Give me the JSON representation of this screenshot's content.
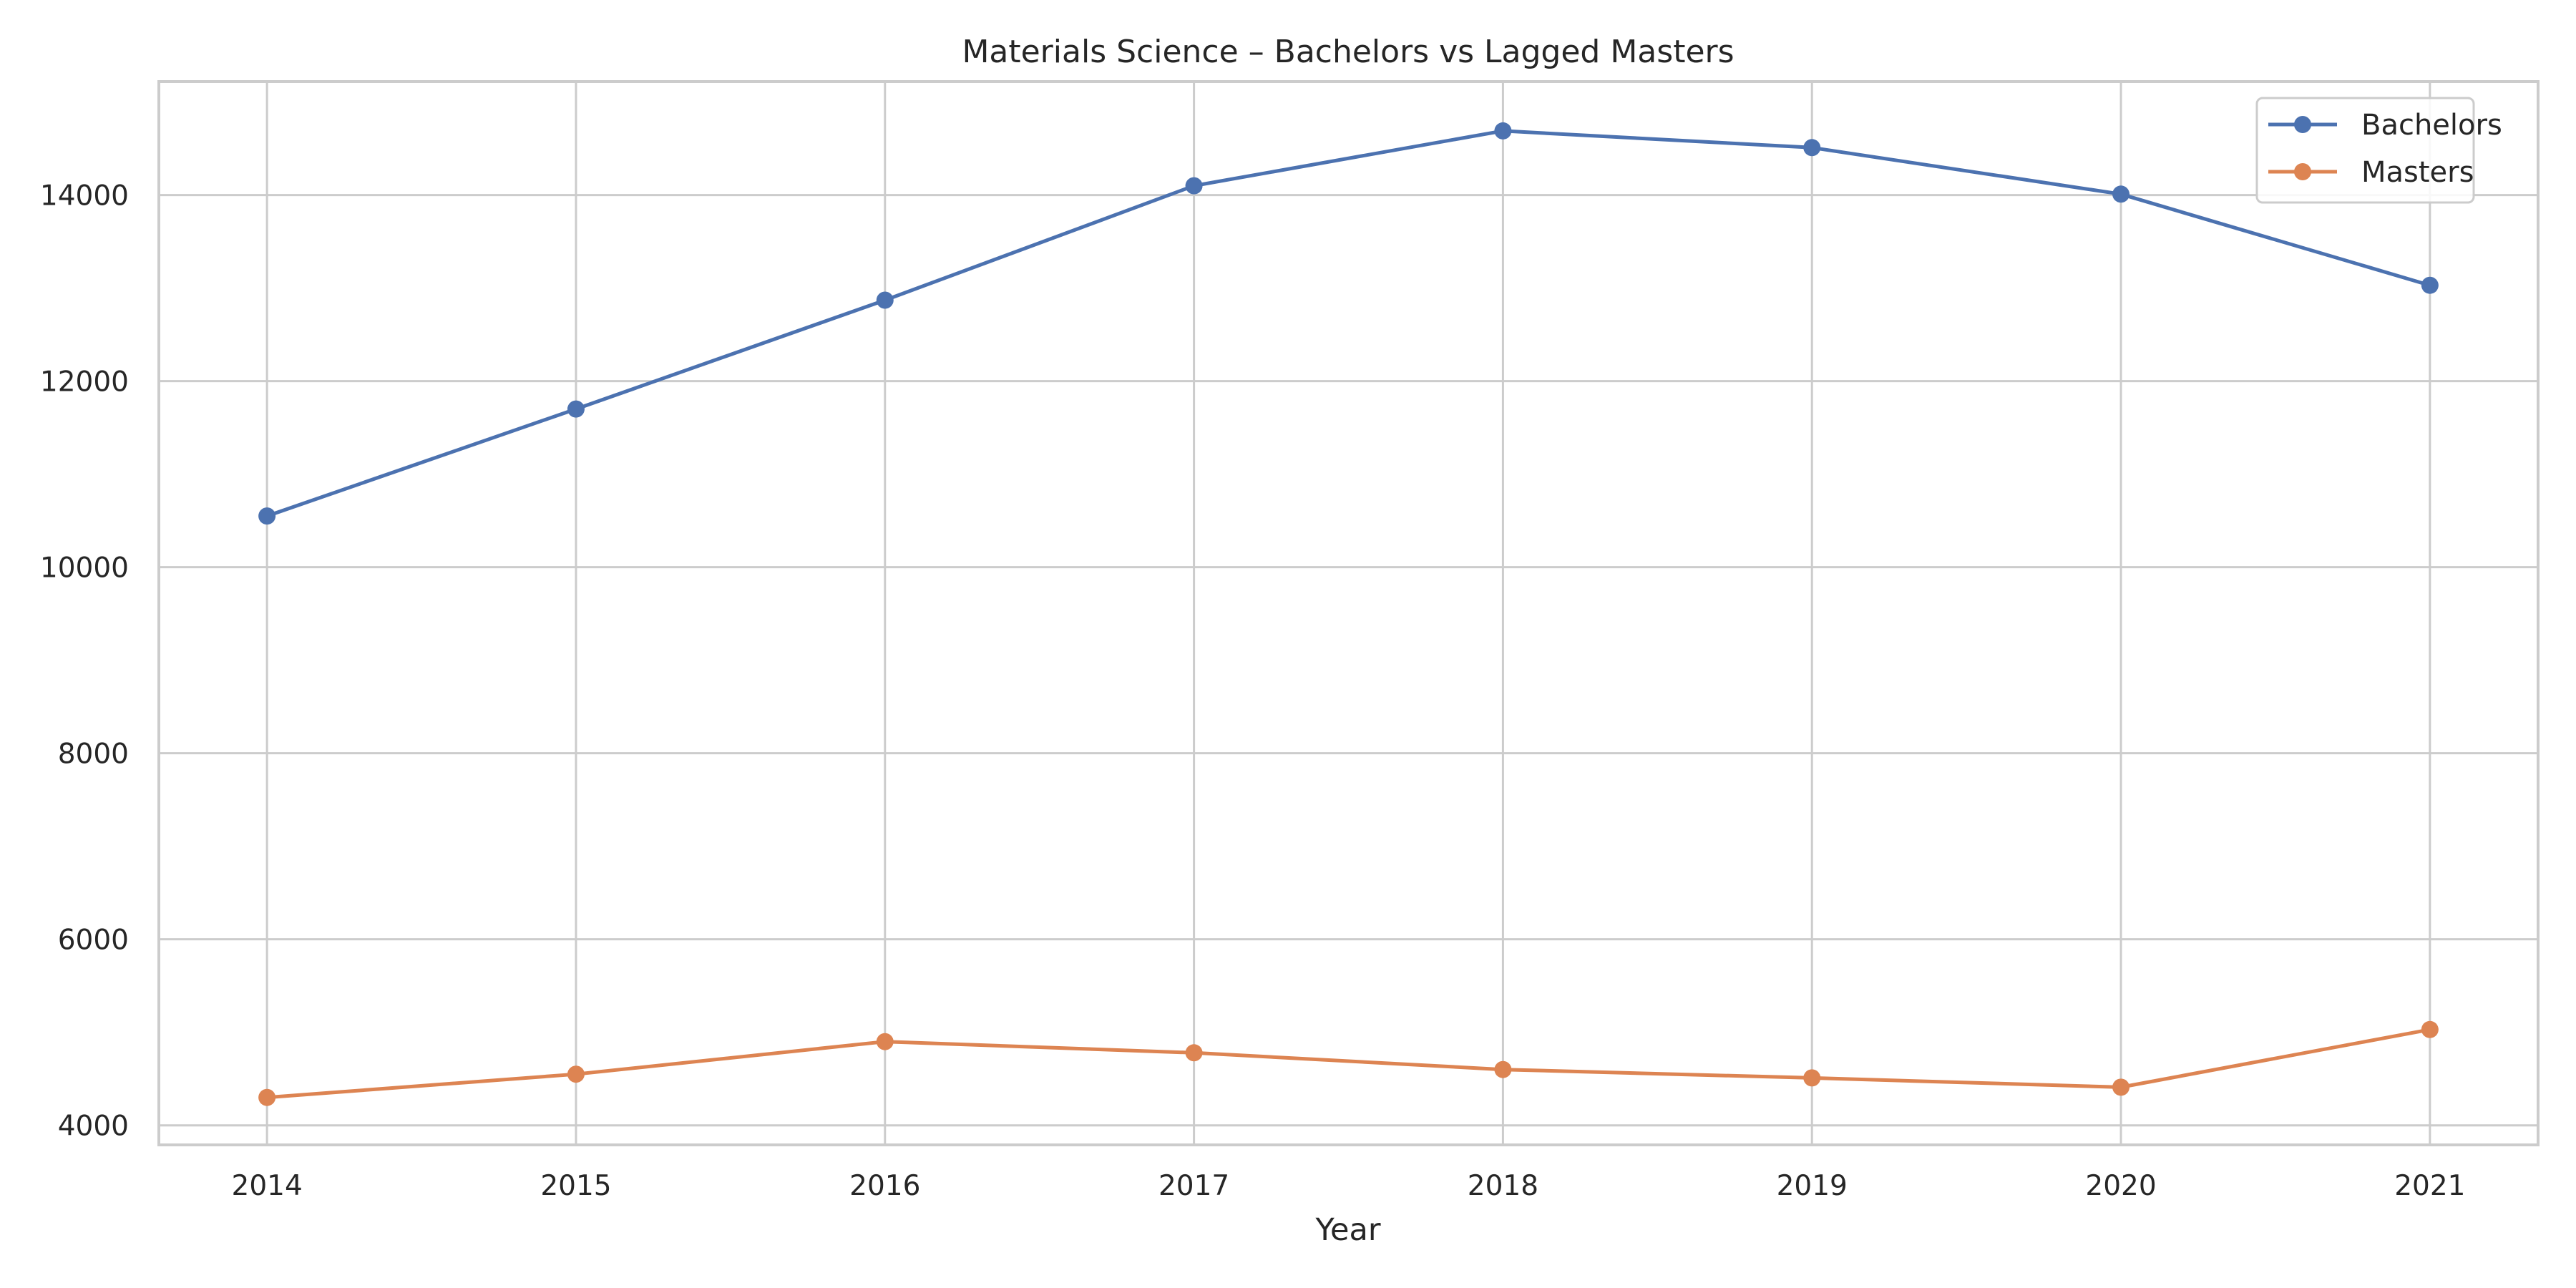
{
  "chart_data": {
    "type": "line",
    "title": "Materials Science – Bachelors vs Lagged Masters",
    "xlabel": "Year",
    "ylabel": "",
    "x": [
      2014,
      2015,
      2016,
      2017,
      2018,
      2019,
      2020,
      2021
    ],
    "x_tick_labels": [
      "2014",
      "2015",
      "2016",
      "2017",
      "2018",
      "2019",
      "2020",
      "2021"
    ],
    "xlim": [
      2013.65,
      2021.35
    ],
    "ylim": [
      3790,
      15220
    ],
    "y_ticks": [
      4000,
      6000,
      8000,
      10000,
      12000,
      14000
    ],
    "y_tick_labels": [
      "4000",
      "6000",
      "8000",
      "10000",
      "12000",
      "14000"
    ],
    "grid": true,
    "legend_position": "top-right",
    "series": [
      {
        "name": "Bachelors",
        "color": "#4c72b0",
        "marker": "circle",
        "values": [
          10550,
          11700,
          12870,
          14100,
          14690,
          14510,
          14010,
          13030
        ]
      },
      {
        "name": "Masters",
        "color": "#dd8452",
        "marker": "circle",
        "values": [
          4300,
          4550,
          4900,
          4780,
          4600,
          4510,
          4410,
          5030
        ]
      }
    ]
  }
}
